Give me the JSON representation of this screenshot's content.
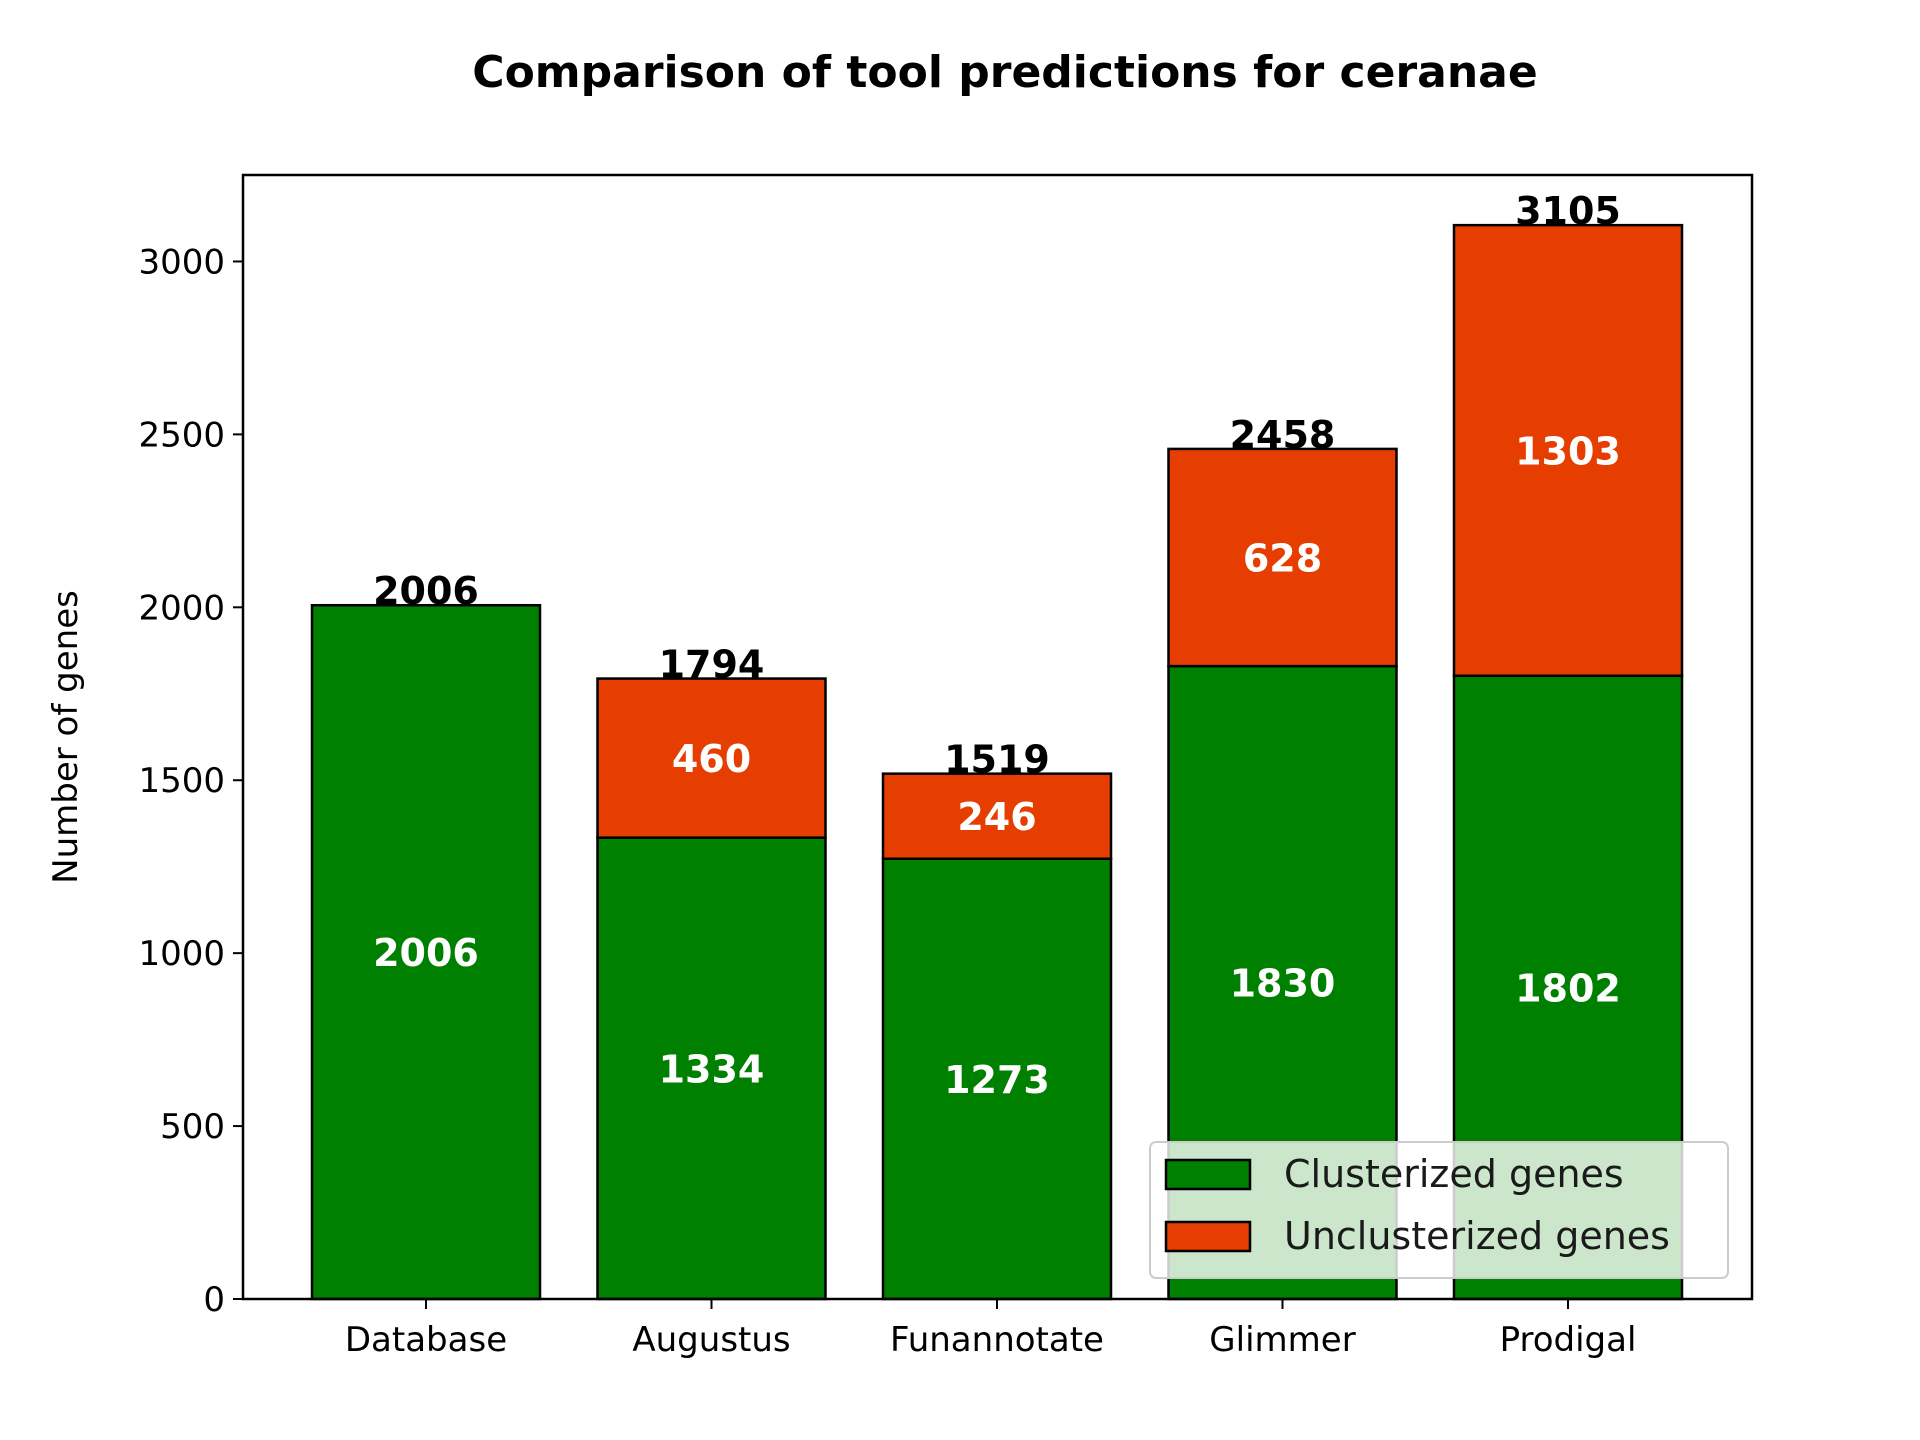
{
  "chart_data": {
    "type": "bar",
    "stacked": true,
    "title": "Comparison of tool predictions for ceranae",
    "xlabel": "",
    "ylabel": "Number of genes",
    "categories": [
      "Database",
      "Augustus",
      "Funannotate",
      "Glimmer",
      "Prodigal"
    ],
    "series": [
      {
        "name": "Clusterized genes",
        "color": "#008000",
        "values": [
          2006,
          1334,
          1273,
          1830,
          1802
        ]
      },
      {
        "name": "Unclusterized genes",
        "color": "#e63e00",
        "values": [
          0,
          460,
          246,
          628,
          1303
        ]
      }
    ],
    "totals": [
      2006,
      1794,
      1519,
      2458,
      3105
    ],
    "ylim": [
      0,
      3250
    ],
    "yticks": [
      0,
      500,
      1000,
      1500,
      2000,
      2500,
      3000
    ],
    "legend_position": "lower-right",
    "grid": false
  }
}
